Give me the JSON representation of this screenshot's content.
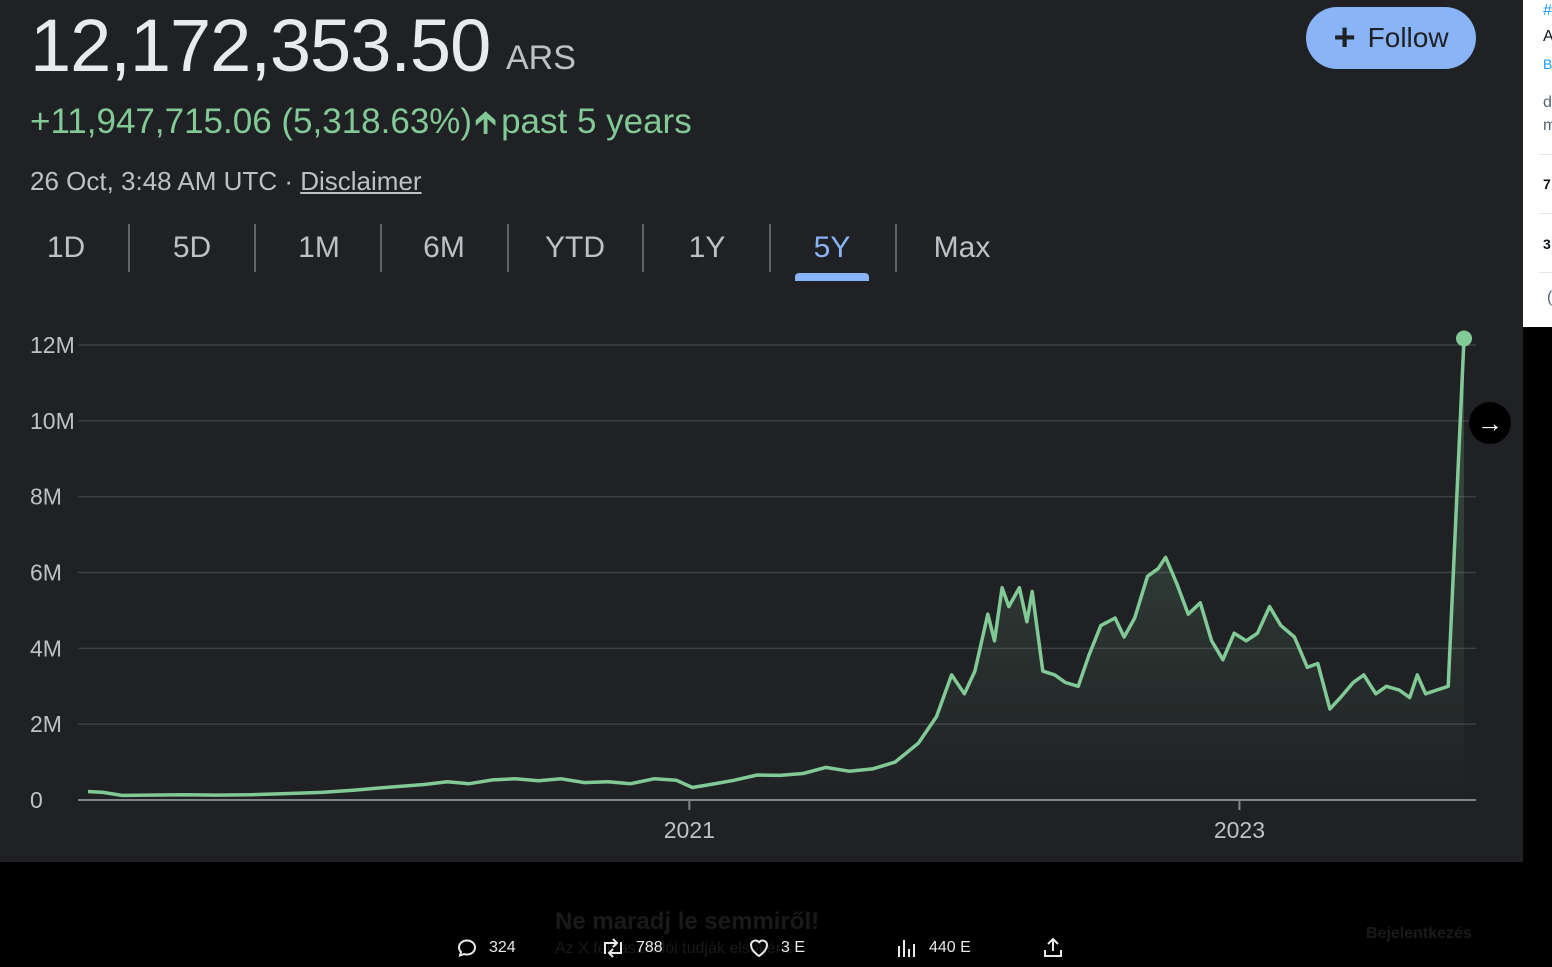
{
  "quote": {
    "price": "12,172,353.50",
    "currency": "ARS",
    "change": "+11,947,715.06 (5,318.63%)",
    "period": "past 5 years",
    "timestamp": "26 Oct, 3:48 AM UTC ·",
    "disclaimer": "Disclaimer"
  },
  "follow_button": {
    "label": "Follow",
    "icon": "plus-icon",
    "color": "#8ab4f8"
  },
  "tabs": [
    {
      "label": "1D"
    },
    {
      "label": "5D"
    },
    {
      "label": "1M"
    },
    {
      "label": "6M"
    },
    {
      "label": "YTD"
    },
    {
      "label": "1Y"
    },
    {
      "label": "5Y",
      "active": true
    },
    {
      "label": "Max"
    }
  ],
  "chart_data": {
    "type": "area",
    "line_color": "#81c995",
    "grid": true,
    "ylim": [
      0,
      12000000
    ],
    "y_ticks": [
      {
        "value": 0,
        "label": "0"
      },
      {
        "value": 2000000,
        "label": "2M"
      },
      {
        "value": 4000000,
        "label": "4M"
      },
      {
        "value": 6000000,
        "label": "6M"
      },
      {
        "value": 8000000,
        "label": "8M"
      },
      {
        "value": 10000000,
        "label": "10M"
      },
      {
        "value": 12000000,
        "label": "12M"
      }
    ],
    "x_range": [
      "2018-10-26",
      "2023-10-26"
    ],
    "x_ticks": [
      {
        "date": "2021-01-01",
        "label": "2021"
      },
      {
        "date": "2023-01-01",
        "label": "2023"
      }
    ],
    "series": [
      {
        "points": [
          [
            "2018-10-26",
            224000
          ],
          [
            "2018-11-15",
            200000
          ],
          [
            "2018-12-10",
            120000
          ],
          [
            "2019-01-15",
            130000
          ],
          [
            "2019-03-01",
            140000
          ],
          [
            "2019-04-15",
            130000
          ],
          [
            "2019-06-01",
            140000
          ],
          [
            "2019-07-15",
            170000
          ],
          [
            "2019-09-01",
            200000
          ],
          [
            "2019-10-15",
            260000
          ],
          [
            "2019-12-01",
            340000
          ],
          [
            "2020-01-15",
            410000
          ],
          [
            "2020-02-15",
            480000
          ],
          [
            "2020-03-15",
            430000
          ],
          [
            "2020-04-15",
            530000
          ],
          [
            "2020-05-15",
            560000
          ],
          [
            "2020-06-15",
            510000
          ],
          [
            "2020-07-15",
            560000
          ],
          [
            "2020-08-15",
            460000
          ],
          [
            "2020-09-15",
            480000
          ],
          [
            "2020-10-15",
            430000
          ],
          [
            "2020-11-15",
            560000
          ],
          [
            "2020-12-15",
            520000
          ],
          [
            "2021-01-05",
            330000
          ],
          [
            "2021-02-01",
            420000
          ],
          [
            "2021-03-01",
            520000
          ],
          [
            "2021-04-01",
            660000
          ],
          [
            "2021-05-01",
            650000
          ],
          [
            "2021-06-01",
            700000
          ],
          [
            "2021-07-01",
            860000
          ],
          [
            "2021-08-01",
            760000
          ],
          [
            "2021-09-01",
            820000
          ],
          [
            "2021-10-01",
            1000000
          ],
          [
            "2021-11-01",
            1500000
          ],
          [
            "2021-11-25",
            2200000
          ],
          [
            "2021-12-15",
            3300000
          ],
          [
            "2022-01-01",
            2800000
          ],
          [
            "2022-01-15",
            3400000
          ],
          [
            "2022-02-01",
            4900000
          ],
          [
            "2022-02-10",
            4200000
          ],
          [
            "2022-02-20",
            5600000
          ],
          [
            "2022-03-01",
            5100000
          ],
          [
            "2022-03-15",
            5600000
          ],
          [
            "2022-03-25",
            4700000
          ],
          [
            "2022-04-01",
            5500000
          ],
          [
            "2022-04-15",
            3400000
          ],
          [
            "2022-05-01",
            3300000
          ],
          [
            "2022-05-15",
            3100000
          ],
          [
            "2022-06-01",
            3000000
          ],
          [
            "2022-06-15",
            3800000
          ],
          [
            "2022-07-01",
            4600000
          ],
          [
            "2022-07-20",
            4800000
          ],
          [
            "2022-08-01",
            4300000
          ],
          [
            "2022-08-15",
            4800000
          ],
          [
            "2022-09-01",
            5900000
          ],
          [
            "2022-09-15",
            6100000
          ],
          [
            "2022-09-25",
            6400000
          ],
          [
            "2022-10-10",
            5700000
          ],
          [
            "2022-10-25",
            4900000
          ],
          [
            "2022-11-10",
            5200000
          ],
          [
            "2022-11-25",
            4200000
          ],
          [
            "2022-12-10",
            3700000
          ],
          [
            "2022-12-25",
            4400000
          ],
          [
            "2023-01-10",
            4200000
          ],
          [
            "2023-01-25",
            4400000
          ],
          [
            "2023-02-10",
            5100000
          ],
          [
            "2023-02-25",
            4600000
          ],
          [
            "2023-03-15",
            4300000
          ],
          [
            "2023-04-01",
            3500000
          ],
          [
            "2023-04-15",
            3600000
          ],
          [
            "2023-05-01",
            2400000
          ],
          [
            "2023-05-15",
            2700000
          ],
          [
            "2023-06-01",
            3100000
          ],
          [
            "2023-06-15",
            3300000
          ],
          [
            "2023-07-01",
            2800000
          ],
          [
            "2023-07-15",
            3000000
          ],
          [
            "2023-08-01",
            2900000
          ],
          [
            "2023-08-15",
            2700000
          ],
          [
            "2023-08-25",
            3300000
          ],
          [
            "2023-09-05",
            2800000
          ],
          [
            "2023-09-20",
            2900000
          ],
          [
            "2023-10-05",
            3000000
          ],
          [
            "2023-10-26",
            12172353.5
          ]
        ]
      }
    ]
  },
  "tweet_actions": [
    {
      "icon": "reply-icon",
      "label": "324"
    },
    {
      "icon": "retweet-icon",
      "label": "788"
    },
    {
      "icon": "like-icon",
      "label": "3 E"
    },
    {
      "icon": "views-icon",
      "label": "440 E"
    },
    {
      "icon": "share-icon",
      "label": ""
    }
  ],
  "banner": {
    "title": "Ne maradj le semmiről!",
    "subtitle": "Az X felhasználói tudják elsőként.",
    "login": "Bejelentkezés"
  },
  "sidebar_fragments": [
    "#",
    "A",
    "B",
    "d",
    "m",
    "7",
    "3",
    "("
  ]
}
